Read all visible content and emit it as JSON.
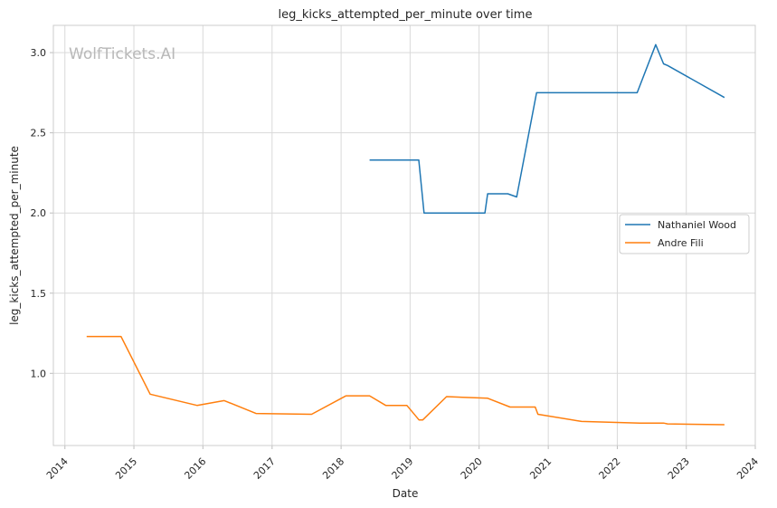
{
  "chart_data": {
    "type": "line",
    "title": "leg_kicks_attempted_per_minute over time",
    "xlabel": "Date",
    "ylabel": "leg_kicks_attempted_per_minute",
    "watermark": "WolfTickets.AI",
    "xlim": [
      "2013-11-01",
      "2024-01-01"
    ],
    "ylim": [
      0.55,
      3.17
    ],
    "grid": true,
    "legend_position": "center-right",
    "x_ticks": [
      "2014",
      "2015",
      "2016",
      "2017",
      "2018",
      "2019",
      "2020",
      "2021",
      "2022",
      "2023",
      "2024"
    ],
    "y_ticks": [
      1.0,
      1.5,
      2.0,
      2.5,
      3.0
    ],
    "series": [
      {
        "name": "Nathaniel Wood",
        "color": "#1f77b4",
        "x": [
          "2018-06-01",
          "2019-02-16",
          "2019-03-16",
          "2020-02-01",
          "2020-02-15",
          "2020-06-01",
          "2020-07-18",
          "2020-10-31",
          "2022-04-16",
          "2022-07-23",
          "2022-09-03",
          "2022-09-24",
          "2023-07-22"
        ],
        "y": [
          2.33,
          2.33,
          2.0,
          2.0,
          2.12,
          2.12,
          2.1,
          2.75,
          2.75,
          3.05,
          2.93,
          2.92,
          2.72
        ]
      },
      {
        "name": "Andre Fili",
        "color": "#ff7f0e",
        "x": [
          "2014-04-26",
          "2014-10-25",
          "2015-03-28",
          "2015-12-01",
          "2016-04-23",
          "2016-10-08",
          "2017-07-29",
          "2018-01-27",
          "2018-06-01",
          "2018-08-25",
          "2018-12-15",
          "2019-02-17",
          "2019-03-09",
          "2019-07-13",
          "2020-02-15",
          "2020-06-13",
          "2020-10-24",
          "2020-11-07",
          "2021-06-26",
          "2022-04-30",
          "2022-09-03",
          "2022-09-24",
          "2023-07-22"
        ],
        "y": [
          1.23,
          1.23,
          0.87,
          0.8,
          0.83,
          0.75,
          0.745,
          0.86,
          0.86,
          0.8,
          0.8,
          0.71,
          0.71,
          0.855,
          0.845,
          0.79,
          0.79,
          0.745,
          0.7,
          0.69,
          0.69,
          0.685,
          0.68
        ]
      }
    ]
  }
}
